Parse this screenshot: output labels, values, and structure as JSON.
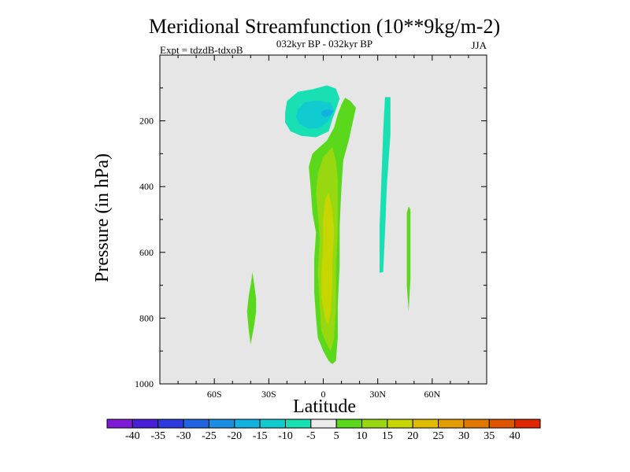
{
  "chart_data": {
    "type": "contour",
    "title": "Meridional Streamfunction (10**9kg/m-2)",
    "subtitle": "032kyr BP - 032kyr BP",
    "left_label": "Expt = tdzdB-tdxoB",
    "right_label": "JJA",
    "xlabel": "Latitude",
    "ylabel": "Pressure (in hPa)",
    "xlim": [
      -90,
      90
    ],
    "ylim": [
      1000,
      0
    ],
    "x_ticks": [
      {
        "value": -60,
        "label": "60S"
      },
      {
        "value": -30,
        "label": "30S"
      },
      {
        "value": 0,
        "label": "0"
      },
      {
        "value": 30,
        "label": "30N"
      },
      {
        "value": 60,
        "label": "60N"
      }
    ],
    "y_ticks": [
      {
        "value": 200,
        "label": "200"
      },
      {
        "value": 400,
        "label": "400"
      },
      {
        "value": 600,
        "label": "600"
      },
      {
        "value": 800,
        "label": "800"
      },
      {
        "value": 1000,
        "label": "1000"
      }
    ],
    "background_color": "#e6e6e6",
    "colorbar": {
      "levels": [
        -40,
        -35,
        -30,
        -25,
        -20,
        -15,
        -10,
        -5,
        5,
        10,
        15,
        20,
        25,
        30,
        35,
        40
      ],
      "labels": [
        "-40",
        "-35",
        "-30",
        "-25",
        "-20",
        "-15",
        "-10",
        "-5",
        "5",
        "10",
        "15",
        "20",
        "25",
        "30",
        "35",
        "40"
      ],
      "colors": [
        "#7f1ad6",
        "#4a1ed8",
        "#2d3ae0",
        "#1f64e0",
        "#1a8ee0",
        "#12b2e0",
        "#10ccd0",
        "#18e0b2",
        "#ebebeb",
        "#5ad81c",
        "#98d810",
        "#c8d600",
        "#e0bc00",
        "#e09c00",
        "#e07800",
        "#e05400",
        "#e02800"
      ]
    },
    "regions": [
      {
        "name": "tropical-upper-negative-cell",
        "fill_level": -5,
        "points": [
          [
            -20,
            140
          ],
          [
            -14,
            112
          ],
          [
            -6,
            104
          ],
          [
            2,
            92
          ],
          [
            7,
            102
          ],
          [
            9,
            132
          ],
          [
            7,
            166
          ],
          [
            5,
            196
          ],
          [
            3,
            232
          ],
          [
            -4,
            250
          ],
          [
            -12,
            246
          ],
          [
            -18,
            232
          ],
          [
            -21,
            205
          ],
          [
            -21,
            175
          ]
        ]
      },
      {
        "name": "tropical-upper-negative-core-a",
        "fill_level": -10,
        "points": [
          [
            -14,
            165
          ],
          [
            -10,
            143
          ],
          [
            -3,
            138
          ],
          [
            4,
            145
          ],
          [
            6,
            168
          ],
          [
            3,
            200
          ],
          [
            -2,
            222
          ],
          [
            -8,
            224
          ],
          [
            -13,
            210
          ],
          [
            -15,
            188
          ]
        ]
      },
      {
        "name": "tropical-upper-negative-core-b",
        "fill_level": -15,
        "points": [
          [
            -1,
            172
          ],
          [
            2,
            164
          ],
          [
            6,
            170
          ],
          [
            4,
            182
          ],
          [
            1,
            190
          ],
          [
            -1,
            182
          ]
        ]
      },
      {
        "name": "northern-upper-negative-band",
        "fill_level": -5,
        "points": [
          [
            34,
            128
          ],
          [
            37,
            128
          ],
          [
            37,
            240
          ],
          [
            35,
            400
          ],
          [
            34,
            540
          ],
          [
            33,
            660
          ],
          [
            31,
            662
          ],
          [
            31,
            520
          ],
          [
            32,
            380
          ],
          [
            33,
            230
          ]
        ]
      },
      {
        "name": "southern-lower-positive-cell",
        "fill_level": 5,
        "points": [
          [
            -39,
            660
          ],
          [
            -38,
            700
          ],
          [
            -37,
            740
          ],
          [
            -37,
            780
          ],
          [
            -38,
            820
          ],
          [
            -39,
            850
          ],
          [
            -40,
            880
          ],
          [
            -41,
            840
          ],
          [
            -42,
            780
          ],
          [
            -41,
            730
          ],
          [
            -40,
            700
          ]
        ]
      },
      {
        "name": "northern-mid-positive-sliver",
        "fill_level": 5,
        "points": [
          [
            47,
            460
          ],
          [
            48,
            470
          ],
          [
            48,
            560
          ],
          [
            48,
            680
          ],
          [
            47,
            780
          ],
          [
            46,
            700
          ],
          [
            46,
            560
          ],
          [
            46,
            480
          ]
        ]
      },
      {
        "name": "equatorial-positive-cell",
        "fill_level": 5,
        "points": [
          [
            12,
            130
          ],
          [
            15,
            140
          ],
          [
            18,
            160
          ],
          [
            16,
            210
          ],
          [
            14,
            260
          ],
          [
            11,
            320
          ],
          [
            10,
            400
          ],
          [
            9,
            520
          ],
          [
            9,
            640
          ],
          [
            8,
            760
          ],
          [
            8,
            860
          ],
          [
            7,
            930
          ],
          [
            5,
            940
          ],
          [
            3,
            930
          ],
          [
            0,
            900
          ],
          [
            -3,
            860
          ],
          [
            -4,
            800
          ],
          [
            -5,
            720
          ],
          [
            -5,
            620
          ],
          [
            -4,
            540
          ],
          [
            -6,
            480
          ],
          [
            -7,
            400
          ],
          [
            -8,
            340
          ],
          [
            -6,
            300
          ],
          [
            -2,
            280
          ],
          [
            2,
            260
          ],
          [
            6,
            220
          ],
          [
            8,
            180
          ],
          [
            10,
            150
          ]
        ]
      },
      {
        "name": "equatorial-positive-core",
        "fill_level": 10,
        "points": [
          [
            5,
            280
          ],
          [
            7,
            320
          ],
          [
            8,
            380
          ],
          [
            8,
            450
          ],
          [
            8,
            540
          ],
          [
            7,
            640
          ],
          [
            7,
            760
          ],
          [
            6,
            860
          ],
          [
            4,
            900
          ],
          [
            2,
            880
          ],
          [
            -1,
            840
          ],
          [
            -2,
            760
          ],
          [
            -3,
            660
          ],
          [
            -2,
            560
          ],
          [
            -3,
            480
          ],
          [
            -4,
            420
          ],
          [
            -3,
            360
          ],
          [
            0,
            310
          ]
        ]
      },
      {
        "name": "equatorial-positive-inner",
        "fill_level": 15,
        "points": [
          [
            3,
            420
          ],
          [
            5,
            470
          ],
          [
            6,
            540
          ],
          [
            5,
            620
          ],
          [
            5,
            700
          ],
          [
            4,
            780
          ],
          [
            3,
            820
          ],
          [
            1,
            800
          ],
          [
            -1,
            740
          ],
          [
            -1,
            660
          ],
          [
            0,
            580
          ],
          [
            0,
            500
          ],
          [
            1,
            440
          ]
        ]
      }
    ]
  }
}
